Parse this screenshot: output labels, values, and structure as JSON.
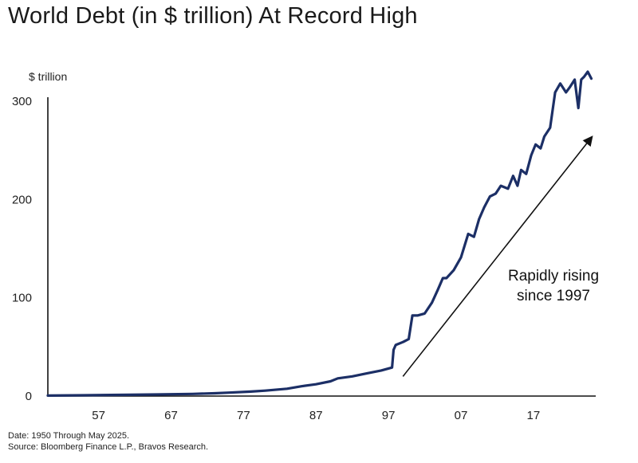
{
  "chart_data": {
    "type": "line",
    "title": "World Debt (in $ trillion) At Record High",
    "unit_label": "$ trillion",
    "ylim": [
      0,
      300
    ],
    "yticks": [
      "300",
      "200",
      "100",
      "0"
    ],
    "xticks": [
      "57",
      "67",
      "77",
      "87",
      "97",
      "07",
      "17"
    ],
    "xtick_years": [
      1957,
      1967,
      1977,
      1987,
      1997,
      2007,
      2017
    ],
    "grid": false,
    "legend": "none",
    "line_color": "#1c2f66",
    "series": [
      {
        "x": [
          1950,
          1955,
          1960,
          1965,
          1970,
          1973,
          1975,
          1978,
          1980,
          1983,
          1985,
          1987,
          1989,
          1990,
          1992,
          1994,
          1996,
          1997.5,
          1997.7,
          1998,
          1999,
          1999.8,
          2000.3,
          2001,
          2002,
          2003,
          2003.8,
          2004.5,
          2005,
          2006,
          2007,
          2008,
          2008.8,
          2009.5,
          2010.2,
          2011,
          2011.8,
          2012.5,
          2013.5,
          2014.2,
          2014.8,
          2015.3,
          2016,
          2016.7,
          2017.3,
          2018,
          2018.5,
          2019.3,
          2020,
          2020.7,
          2021.5,
          2022,
          2022.7,
          2023.2,
          2023.6,
          2024,
          2024.5,
          2025
        ],
        "values": [
          0.5,
          0.8,
          1.2,
          1.6,
          2.2,
          2.8,
          3.5,
          4.5,
          5.5,
          7.5,
          10,
          12,
          15,
          18,
          20,
          23,
          26,
          29,
          47,
          52,
          55,
          58,
          82,
          82,
          84,
          95,
          108,
          120,
          120,
          128,
          141,
          165,
          162,
          180,
          192,
          203,
          206,
          214,
          211,
          224,
          214,
          230,
          226,
          245,
          256,
          252,
          264,
          273,
          309,
          318,
          309,
          314,
          322,
          293,
          322,
          325,
          330,
          323
        ]
      }
    ],
    "annotation": {
      "lines": [
        "Rapidly rising",
        "since 1997"
      ],
      "arrow_from": [
        1999,
        20
      ],
      "arrow_to": [
        2025,
        263
      ]
    }
  },
  "footer": {
    "date_note": "Date: 1950 Through May 2025.",
    "source_note": "Source: Bloomberg Finance L.P., Bravos Research."
  }
}
